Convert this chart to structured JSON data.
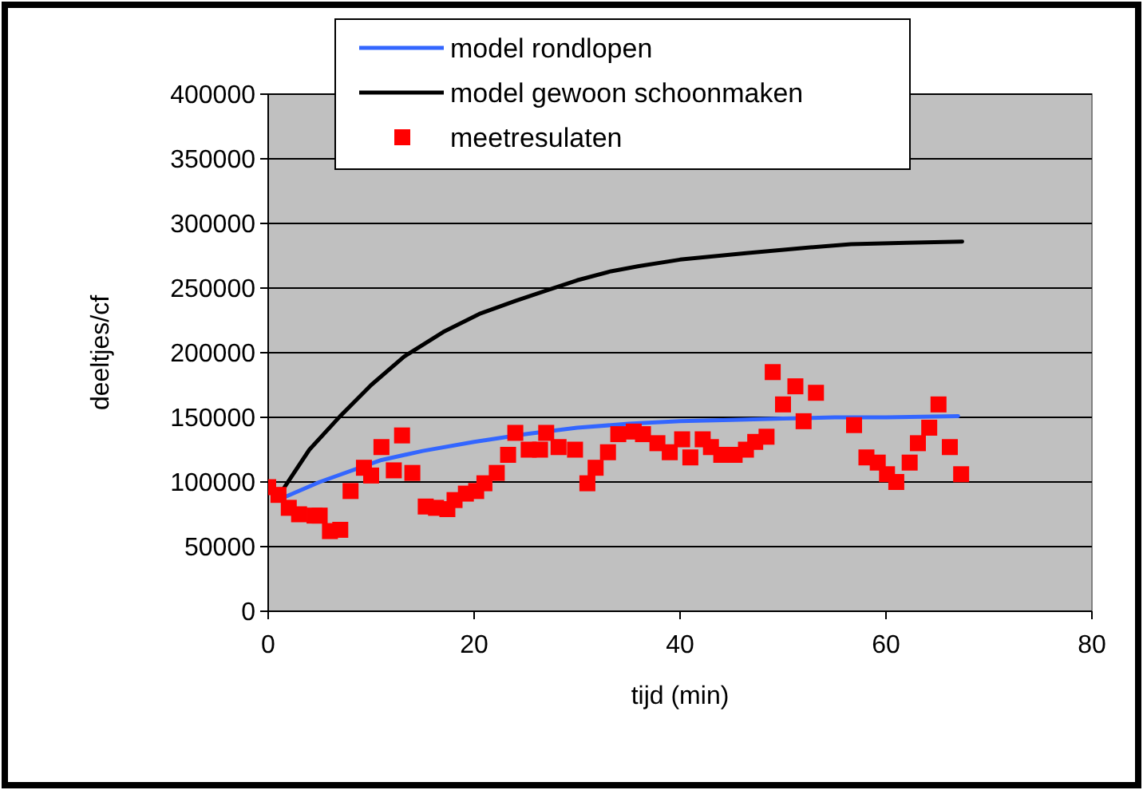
{
  "chart_data": {
    "type": "line",
    "xlabel": "tijd (min)",
    "ylabel": "deeltjes/cf",
    "xlim": [
      0,
      80
    ],
    "xticks": [
      0,
      20,
      40,
      60,
      80
    ],
    "ylim": [
      0,
      400000
    ],
    "yticks": [
      0,
      50000,
      100000,
      150000,
      200000,
      250000,
      300000,
      350000,
      400000
    ],
    "grid": "y",
    "legend": "top",
    "series": [
      {
        "name": "model rondlopen",
        "color": "#3366ff",
        "marker": "none",
        "x": [
          1.5,
          5,
          11,
          15,
          20,
          25,
          30,
          35,
          40,
          45,
          50,
          55,
          60,
          67
        ],
        "values": [
          88000,
          100000,
          117000,
          124000,
          131000,
          137000,
          142000,
          145000,
          147000,
          148000,
          149000,
          150000,
          150000,
          151000
        ]
      },
      {
        "name": "model gewoon schoonmaken",
        "color": "#000000",
        "marker": "none",
        "x": [
          1.5,
          4,
          7,
          10,
          13.2,
          17,
          20.5,
          24,
          27,
          30,
          33.3,
          36,
          40,
          46.4,
          52,
          56.6,
          62,
          67.4
        ],
        "values": [
          95000,
          125000,
          151000,
          175000,
          197000,
          216000,
          230000,
          240000,
          248000,
          256000,
          263000,
          267000,
          272000,
          277000,
          281000,
          284000,
          285000,
          286000
        ]
      },
      {
        "name": "meetresulaten",
        "color": "#ff0000",
        "type": "scatter",
        "marker": "square",
        "x": [
          0,
          1,
          2,
          3,
          4.5,
          5,
          6,
          7,
          8,
          9.3,
          10,
          11,
          12.2,
          13,
          14,
          15.3,
          16.3,
          17.4,
          18.1,
          19.2,
          20.2,
          21,
          22.2,
          23.3,
          24,
          25.3,
          26.4,
          27,
          28.2,
          29.8,
          31,
          31.8,
          33,
          34,
          35.5,
          36.4,
          37.8,
          39,
          40.2,
          41,
          42.2,
          43,
          44,
          45.3,
          46.4,
          47.3,
          48.4,
          49,
          50,
          51.2,
          52,
          53.2,
          56.9,
          58.1,
          59.2,
          60.1,
          61,
          62.3,
          63.1,
          64.2,
          65.1,
          66.2,
          67.3
        ],
        "values": [
          96000,
          90000,
          80000,
          75000,
          74000,
          74000,
          62000,
          63000,
          93000,
          111000,
          105000,
          127000,
          109000,
          136000,
          107000,
          81000,
          80000,
          79000,
          86000,
          91000,
          93000,
          99000,
          107000,
          121000,
          138000,
          125000,
          125000,
          138000,
          127000,
          125000,
          99000,
          111000,
          123000,
          137000,
          139000,
          137000,
          130000,
          123000,
          133000,
          119000,
          133000,
          127000,
          121000,
          121000,
          125000,
          131000,
          135000,
          185000,
          160000,
          174000,
          147000,
          169000,
          144000,
          119000,
          115000,
          106000,
          100000,
          115000,
          130000,
          142000,
          160000,
          127000,
          106000
        ]
      }
    ]
  }
}
